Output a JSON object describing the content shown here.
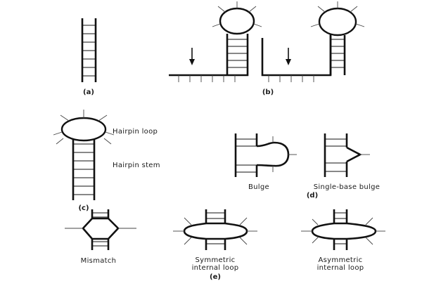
{
  "panels": {
    "a": {
      "caption": "(a)"
    },
    "b": {
      "caption": "(b)"
    },
    "c": {
      "caption": "(c)",
      "loop_label": "Hairpin loop",
      "stem_label": "Hairpin stem"
    },
    "d": {
      "caption": "(d)",
      "bulge_label": "Bulge",
      "single_base_bulge_label": "Single-base bulge"
    },
    "e": {
      "caption": "(e)",
      "mismatch_label": "Mismatch",
      "symmetric_label_line1": "Symmetric",
      "symmetric_label_line2": "internal loop",
      "asymmetric_label_line1": "Asymmetric",
      "asymmetric_label_line2": "internal loop"
    }
  },
  "colors": {
    "line": "#111111",
    "background": "#ffffff"
  }
}
